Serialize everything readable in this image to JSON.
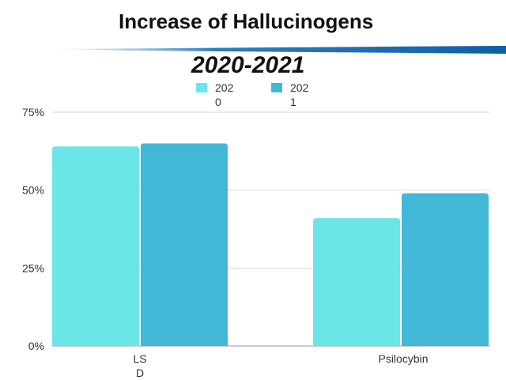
{
  "chart_data": {
    "type": "bar",
    "title": "Increase of Hallucinogens",
    "subtitle": "2020-2021",
    "categories": [
      "LSD",
      "Psilocybin"
    ],
    "series": [
      {
        "name": "2020",
        "values": [
          64,
          41
        ],
        "color": "#6ae5e8"
      },
      {
        "name": "2021",
        "values": [
          65,
          49
        ],
        "color": "#42b8d6"
      }
    ],
    "y_ticks": [
      "0%",
      "25%",
      "50%",
      "75%"
    ],
    "ylim": [
      0,
      75
    ],
    "grid": true,
    "legend_position": "top-center",
    "accent_color": "#1c6bb0"
  }
}
